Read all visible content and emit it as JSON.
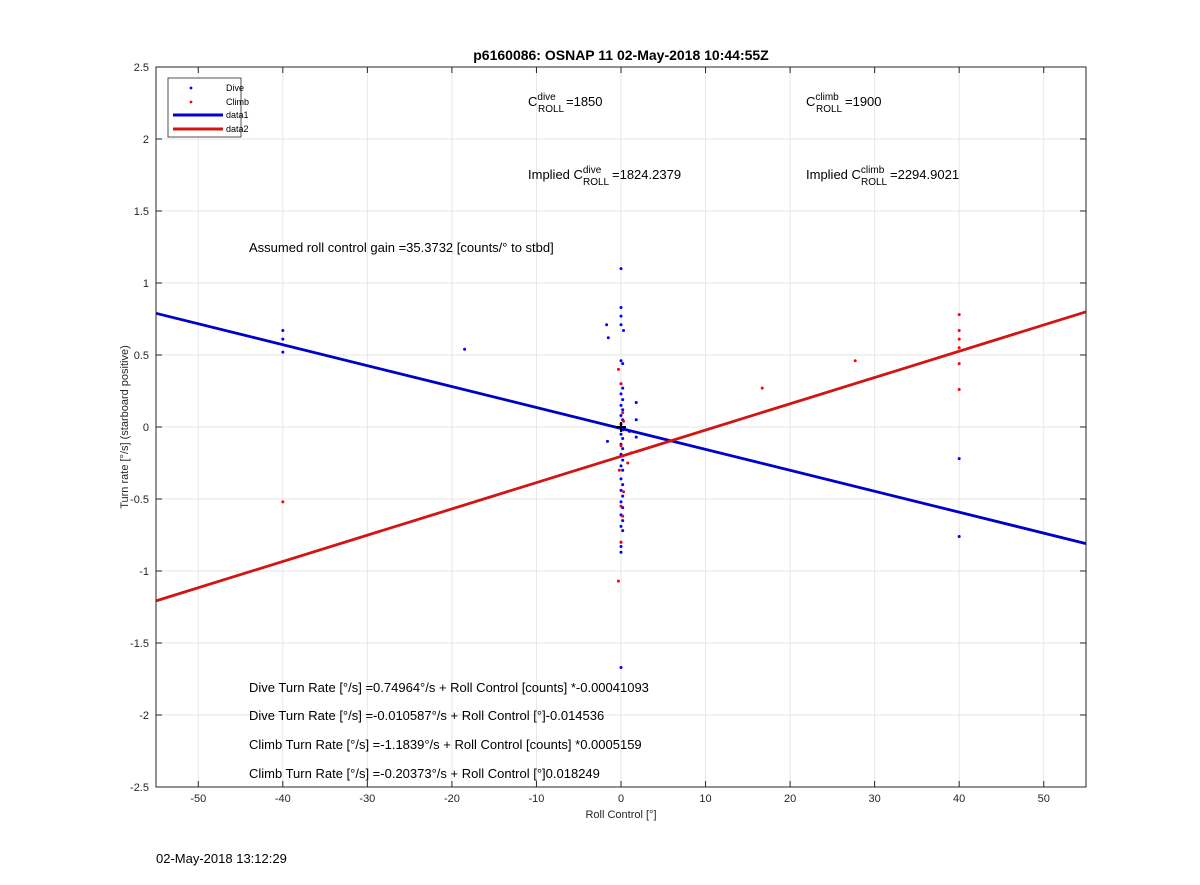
{
  "chart_data": {
    "type": "scatter",
    "title": "p6160086: OSNAP 11 02-May-2018 10:44:55Z",
    "xlabel": "Roll Control [°]",
    "ylabel": "Turn rate [°/s] (starboard positive)",
    "xlim": [
      -55,
      55
    ],
    "ylim": [
      -2.5,
      2.5
    ],
    "xticks": [
      -50,
      -40,
      -30,
      -20,
      -10,
      0,
      10,
      20,
      30,
      40,
      50
    ],
    "yticks": [
      -2.5,
      -2,
      -1.5,
      -1,
      -0.5,
      0,
      0.5,
      1,
      1.5,
      2,
      2.5
    ],
    "xtick_labels": [
      "-50",
      "-40",
      "-30",
      "-20",
      "-10",
      "0",
      "10",
      "20",
      "30",
      "40",
      "50"
    ],
    "ytick_labels": [
      "-2.5",
      "-2",
      "-1.5",
      "-1",
      "-0.5",
      "0",
      "0.5",
      "1",
      "1.5",
      "2",
      "2.5"
    ],
    "grid": true,
    "legend_position": "top-left",
    "legend": [
      {
        "label": "Dive",
        "kind": "marker",
        "color": "#0000ff"
      },
      {
        "label": "Climb",
        "kind": "marker",
        "color": "#ff0000"
      },
      {
        "label": "data1",
        "kind": "line",
        "color": "#0000c8"
      },
      {
        "label": "data2",
        "kind": "line",
        "color": "#d21414"
      }
    ],
    "series": [
      {
        "name": "Dive",
        "kind": "scatter",
        "color": "#0000ff",
        "points": [
          [
            -40,
            0.67
          ],
          [
            -40,
            0.61
          ],
          [
            -40,
            0.52
          ],
          [
            -18.5,
            0.54
          ],
          [
            -1.7,
            0.71
          ],
          [
            -1.5,
            0.62
          ],
          [
            -1.6,
            -0.1
          ],
          [
            0,
            1.1
          ],
          [
            0,
            0.83
          ],
          [
            0,
            0.77
          ],
          [
            0,
            0.71
          ],
          [
            0.3,
            0.67
          ],
          [
            0,
            0.46
          ],
          [
            0.2,
            0.44
          ],
          [
            0,
            0.3
          ],
          [
            0.2,
            0.27
          ],
          [
            0,
            0.23
          ],
          [
            0.2,
            0.19
          ],
          [
            0,
            0.15
          ],
          [
            0.2,
            0.12
          ],
          [
            0,
            0.08
          ],
          [
            0.2,
            0.05
          ],
          [
            0,
            0.02
          ],
          [
            0.2,
            -0.02
          ],
          [
            0,
            -0.05
          ],
          [
            0.2,
            -0.08
          ],
          [
            0,
            -0.12
          ],
          [
            0.2,
            -0.15
          ],
          [
            0,
            -0.19
          ],
          [
            0.2,
            -0.23
          ],
          [
            0,
            -0.27
          ],
          [
            0.2,
            -0.3
          ],
          [
            0,
            -0.36
          ],
          [
            0.2,
            -0.4
          ],
          [
            0,
            -0.44
          ],
          [
            0.2,
            -0.48
          ],
          [
            0,
            -0.52
          ],
          [
            0.2,
            -0.56
          ],
          [
            0,
            -0.61
          ],
          [
            0.2,
            -0.65
          ],
          [
            0,
            -0.69
          ],
          [
            0.2,
            -0.72
          ],
          [
            0,
            -0.8
          ],
          [
            0,
            -0.83
          ],
          [
            0,
            -0.87
          ],
          [
            0,
            -1.67
          ],
          [
            1.8,
            0.17
          ],
          [
            1.8,
            0.05
          ],
          [
            1.8,
            -0.07
          ],
          [
            1,
            -0.03
          ],
          [
            40,
            -0.22
          ],
          [
            40,
            -0.76
          ]
        ]
      },
      {
        "name": "Climb",
        "kind": "scatter",
        "color": "#ff0000",
        "points": [
          [
            -40,
            -0.52
          ],
          [
            -0.3,
            0.4
          ],
          [
            0,
            0.3
          ],
          [
            0.2,
            0.1
          ],
          [
            0.3,
            0.04
          ],
          [
            0,
            -0.13
          ],
          [
            0.2,
            -0.2
          ],
          [
            -0.2,
            -0.3
          ],
          [
            0.3,
            -0.45
          ],
          [
            0,
            -0.55
          ],
          [
            0.2,
            -0.62
          ],
          [
            0,
            -0.8
          ],
          [
            -0.3,
            -1.07
          ],
          [
            1.2,
            -0.18
          ],
          [
            0.8,
            -0.25
          ],
          [
            16.7,
            0.27
          ],
          [
            27.7,
            0.46
          ],
          [
            40,
            0.78
          ],
          [
            40,
            0.67
          ],
          [
            40,
            0.61
          ],
          [
            40,
            0.55
          ],
          [
            40,
            0.44
          ],
          [
            40,
            0.26
          ]
        ]
      },
      {
        "name": "data1",
        "kind": "line",
        "color": "#0000c8",
        "points": [
          [
            -55,
            0.7896
          ],
          [
            55,
            -0.8096
          ]
        ]
      },
      {
        "name": "data2",
        "kind": "line",
        "color": "#d21414",
        "points": [
          [
            -55,
            -1.2074
          ],
          [
            55,
            0.7999
          ]
        ]
      }
    ],
    "cross_marker": {
      "x": 0,
      "y": 0
    },
    "annotations": {
      "c_dive": {
        "base": "C",
        "sup": "dive",
        "sub": "ROLL",
        "value": "=1850"
      },
      "c_climb": {
        "base": "C",
        "sup": "climb",
        "sub": "ROLL",
        "value": "=1900"
      },
      "implied_dive": {
        "prefix": "Implied C",
        "sup": "dive",
        "sub": "ROLL",
        "value": "=1824.2379"
      },
      "implied_climb": {
        "prefix": "Implied C",
        "sup": "climb",
        "sub": "ROLL",
        "value": "=2294.9021"
      },
      "gain": "Assumed roll control gain =35.3732 [counts/° to stbd]",
      "eq_lines": [
        "Dive Turn Rate [°/s] =0.74964°/s + Roll Control [counts] *-0.00041093",
        "Dive Turn Rate [°/s] =-0.010587°/s + Roll Control [°]-0.014536",
        "Climb Turn Rate [°/s] =-1.1839°/s + Roll Control [counts] *0.0005159",
        "Climb Turn Rate [°/s] =-0.20373°/s + Roll Control [°]0.018249"
      ]
    }
  },
  "footer": {
    "timestamp": "02-May-2018 13:12:29"
  }
}
